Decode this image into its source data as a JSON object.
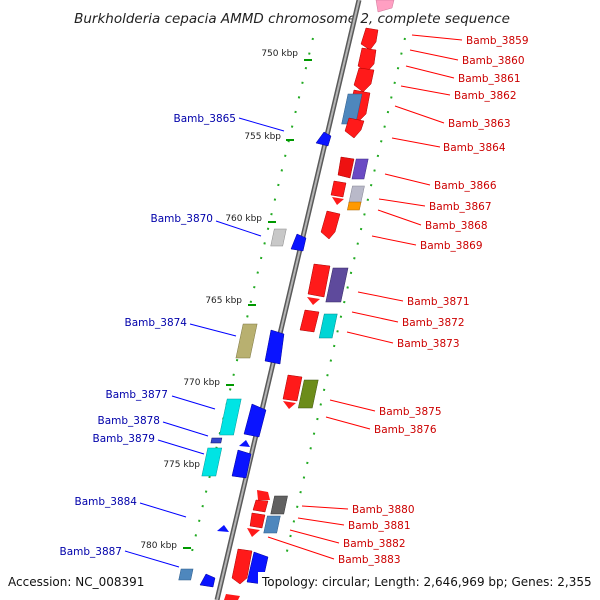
{
  "title": "Burkholderia cepacia AMMD chromosome 2, complete sequence",
  "footer": {
    "accession": "Accession: NC_008391",
    "topology": "Topology: circular; Length: 2,646,969 bp; Genes: 2,355"
  },
  "colors": {
    "backbone": "#8c8c8c",
    "forward_strand": "#ff0000",
    "reverse_strand": "#0000ff",
    "forward_label": "#cc0000",
    "reverse_label": "#0000aa",
    "tick_mark": "#009900"
  },
  "ticks": [
    "750 kbp",
    "755 kbp",
    "760 kbp",
    "765 kbp",
    "770 kbp",
    "775 kbp",
    "780 kbp"
  ],
  "genes_forward": [
    "Bamb_3859",
    "Bamb_3860",
    "Bamb_3861",
    "Bamb_3862",
    "Bamb_3863",
    "Bamb_3864",
    "Bamb_3866",
    "Bamb_3867",
    "Bamb_3868",
    "Bamb_3869",
    "Bamb_3871",
    "Bamb_3872",
    "Bamb_3873",
    "Bamb_3875",
    "Bamb_3876",
    "Bamb_3880",
    "Bamb_3881",
    "Bamb_3882",
    "Bamb_3883"
  ],
  "genes_reverse": [
    "Bamb_3865",
    "Bamb_3870",
    "Bamb_3874",
    "Bamb_3877",
    "Bamb_3878",
    "Bamb_3879",
    "Bamb_3884",
    "Bamb_3887"
  ]
}
